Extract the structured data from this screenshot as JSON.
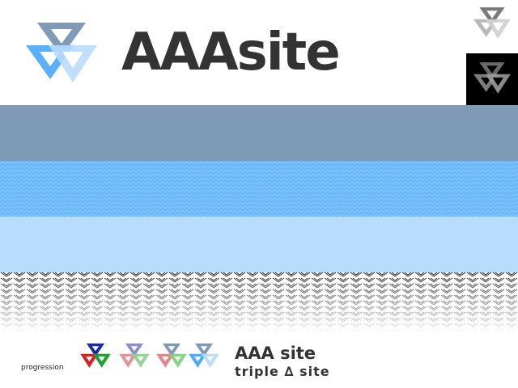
{
  "header": {
    "wordmark": "AAAsite"
  },
  "logo": {
    "icon": "triple-triangle-logo-icon",
    "colors": {
      "top": "#7f9ab5",
      "middle": "#3da2fb",
      "light": "#b8dcfc"
    }
  },
  "mini_logos": [
    {
      "icon": "triple-triangle-logo-light-icon",
      "background": "#ffffff"
    },
    {
      "icon": "triple-triangle-logo-dark-icon",
      "background": "#000000"
    }
  ],
  "palette": [
    {
      "name": "slate",
      "hex": "#7f9ab5"
    },
    {
      "name": "blue",
      "hex": "#6ab8fc"
    },
    {
      "name": "pale-blue",
      "hex": "#b8dcfc"
    },
    {
      "name": "pattern",
      "hex": "#000000"
    }
  ],
  "progression": {
    "label": "progression",
    "steps": [
      {
        "icon": "progression-step-1-icon",
        "colors": [
          "#1a2aa8",
          "#d82020",
          "#20a030"
        ]
      },
      {
        "icon": "progression-step-2-icon",
        "colors": [
          "#8a8fd0",
          "#e08a8a",
          "#8ad08a"
        ]
      },
      {
        "icon": "progression-step-3-icon",
        "colors": [
          "#7f9ab5",
          "#e07a7a",
          "#7ad07a"
        ]
      },
      {
        "icon": "progression-step-4-icon",
        "colors": [
          "#7f9ab5",
          "#3da2fb",
          "#b8dcfc"
        ]
      }
    ]
  },
  "brand": {
    "title": "AAA site",
    "tagline": "triple ∆ site"
  }
}
